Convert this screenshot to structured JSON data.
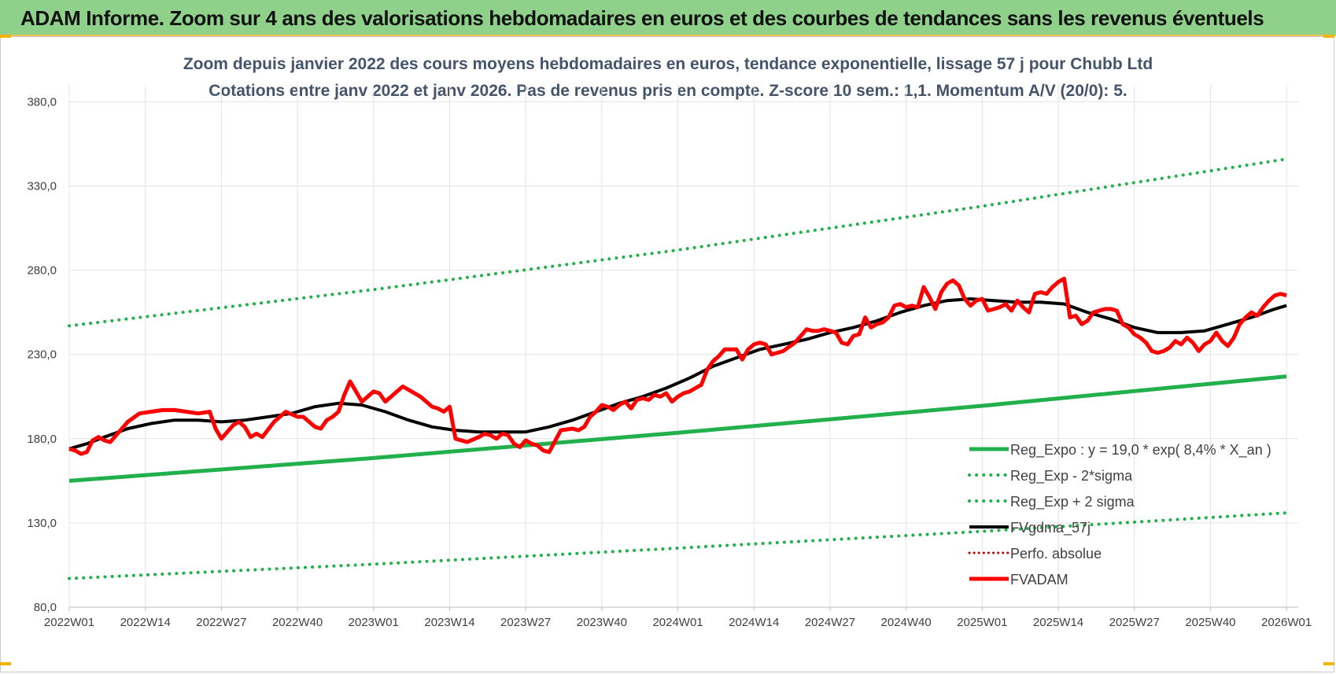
{
  "header": {
    "title": "ADAM Informe. Zoom sur 4 ans des valorisations hebdomadaires en euros et des courbes de tendances sans les revenus éventuels"
  },
  "colors": {
    "banner": "#8fd08a",
    "regression": "#21b04b",
    "band": "#21b04b",
    "smoothed": "#000000",
    "price": "#ff0000",
    "perfo": "#c00000",
    "title_text": "#44546a"
  },
  "chart_data": {
    "type": "line",
    "title": "Zoom depuis janvier 2022 des cours moyens hebdomadaires en euros, tendance exponentielle, lissage 57 j pour Chubb Ltd",
    "subtitle": "Cotations entre janv 2022 et janv 2026. Pas de revenus pris en compte. Z-score 10 sem.: 1,1. Momentum A/V (20/0): 5.",
    "xlabel": "",
    "ylabel": "",
    "ylim": [
      80,
      390
    ],
    "y_ticks": [
      "80,0",
      "130,0",
      "180,0",
      "230,0",
      "280,0",
      "330,0",
      "380,0"
    ],
    "y_tick_values": [
      80,
      130,
      180,
      230,
      280,
      330,
      380
    ],
    "x_range_weeks": [
      0,
      210
    ],
    "x_ticks": [
      "2022W01",
      "2022W14",
      "2022W27",
      "2022W40",
      "2023W01",
      "2023W14",
      "2023W27",
      "2023W40",
      "2024W01",
      "2024W14",
      "2024W27",
      "2024W40",
      "2025W01",
      "2025W14",
      "2025W27",
      "2025W40",
      "2026W01"
    ],
    "x_tick_weeks": [
      0,
      13,
      26,
      39,
      52,
      65,
      78,
      91,
      104,
      117,
      130,
      143,
      156,
      169,
      182,
      195,
      208
    ],
    "grid": true,
    "legend_position": "bottom-right",
    "series": [
      {
        "name": "Reg_Expo : y = 19,0 * exp( 8,4% *  X_an )",
        "style": "solid-thick",
        "x": [
          0,
          52,
          104,
          156,
          208
        ],
        "values": [
          155.0,
          168.5,
          183.5,
          199.5,
          217.0
        ]
      },
      {
        "name": "Reg_Exp - 2*sigma",
        "style": "dotted",
        "x": [
          0,
          52,
          104,
          156,
          208
        ],
        "values": [
          97.0,
          105.5,
          115.0,
          125.0,
          136.0
        ]
      },
      {
        "name": "Reg_Exp + 2 sigma",
        "style": "dotted",
        "x": [
          0,
          52,
          104,
          156,
          208
        ],
        "values": [
          247.0,
          268.5,
          292.0,
          318.0,
          346.0
        ]
      },
      {
        "name": "FVgdma_57j",
        "style": "solid",
        "x": [
          0,
          3,
          6,
          10,
          14,
          18,
          22,
          26,
          30,
          34,
          38,
          42,
          46,
          50,
          54,
          58,
          62,
          66,
          70,
          74,
          78,
          82,
          86,
          90,
          94,
          98,
          102,
          106,
          110,
          114,
          118,
          122,
          126,
          130,
          134,
          138,
          142,
          146,
          150,
          154,
          158,
          162,
          166,
          170,
          174,
          178,
          182,
          186,
          190,
          194,
          198,
          202,
          206,
          208
        ],
        "values": [
          174,
          177,
          181,
          186,
          189,
          191,
          191,
          190,
          191,
          193,
          195,
          199,
          201,
          200,
          196,
          191,
          187,
          185,
          184,
          184,
          184,
          187,
          191,
          196,
          201,
          205,
          210,
          216,
          223,
          228,
          233,
          236,
          239,
          243,
          246,
          250,
          255,
          259,
          262,
          263,
          262,
          261,
          261,
          260,
          255,
          251,
          246,
          243,
          243,
          244,
          248,
          252,
          257,
          259
        ]
      },
      {
        "name": "Perfo. absolue",
        "style": "dotted",
        "x": [],
        "values": []
      },
      {
        "name": "FVADAM",
        "style": "solid-thick",
        "x": [
          0,
          1,
          2,
          3,
          4,
          5,
          6,
          7,
          8,
          10,
          12,
          14,
          16,
          18,
          20,
          22,
          24,
          25,
          26,
          27,
          28,
          29,
          30,
          31,
          32,
          33,
          35,
          37,
          39,
          40,
          42,
          43,
          44,
          45,
          46,
          47,
          48,
          49,
          50,
          51,
          52,
          53,
          54,
          55,
          56,
          57,
          58,
          60,
          62,
          63,
          64,
          65,
          66,
          68,
          70,
          71,
          72,
          73,
          74,
          75,
          76,
          77,
          78,
          79,
          80,
          81,
          82,
          84,
          86,
          87,
          88,
          89,
          90,
          91,
          92,
          93,
          94,
          95,
          96,
          97,
          98,
          99,
          100,
          101,
          102,
          103,
          104,
          105,
          106,
          107,
          108,
          109,
          110,
          111,
          112,
          114,
          115,
          116,
          117,
          118,
          119,
          120,
          121,
          122,
          124,
          125,
          126,
          127,
          128,
          129,
          130,
          131,
          132,
          133,
          134,
          135,
          136,
          137,
          138,
          139,
          140,
          141,
          142,
          143,
          144,
          145,
          146,
          147,
          148,
          149,
          150,
          151,
          152,
          153,
          154,
          155,
          156,
          157,
          158,
          159,
          160,
          161,
          162,
          163,
          164,
          165,
          166,
          167,
          168,
          169,
          170,
          171,
          172,
          173,
          174,
          175,
          176,
          177,
          178,
          179,
          180,
          181,
          182,
          183,
          184,
          185,
          186,
          187,
          188,
          189,
          190,
          191,
          192,
          193,
          194,
          195,
          196,
          197,
          198,
          199,
          200,
          201,
          202,
          203,
          204,
          205,
          206,
          207,
          208
        ],
        "values": [
          174,
          173,
          171,
          172,
          179,
          181,
          179,
          178,
          182,
          190,
          195,
          196,
          197,
          197,
          196,
          195,
          196,
          186,
          180,
          184,
          188,
          190,
          187,
          181,
          183,
          181,
          190,
          196,
          193,
          193,
          187,
          186,
          191,
          193,
          196,
          206,
          214,
          208,
          202,
          205,
          208,
          207,
          202,
          205,
          208,
          211,
          209,
          205,
          199,
          198,
          196,
          199,
          180,
          178,
          181,
          183,
          182,
          180,
          183,
          182,
          177,
          175,
          179,
          177,
          176,
          173,
          172,
          185,
          186,
          185,
          187,
          193,
          196,
          200,
          199,
          197,
          200,
          202,
          198,
          203,
          204,
          203,
          206,
          205,
          207,
          202,
          205,
          207,
          208,
          210,
          212,
          221,
          226,
          229,
          233,
          233,
          227,
          233,
          236,
          237,
          236,
          230,
          231,
          232,
          237,
          241,
          245,
          244,
          244,
          245,
          244,
          243,
          237,
          236,
          241,
          242,
          252,
          246,
          248,
          249,
          252,
          259,
          260,
          258,
          259,
          258,
          270,
          264,
          257,
          267,
          272,
          274,
          271,
          263,
          259,
          262,
          263,
          256,
          257,
          258,
          260,
          256,
          262,
          258,
          255,
          266,
          267,
          266,
          270,
          273,
          275,
          252,
          253,
          248,
          250,
          255,
          256,
          257,
          257,
          256,
          248,
          246,
          242,
          240,
          237,
          232,
          231,
          232,
          234,
          238,
          236,
          240,
          237,
          232,
          236,
          238,
          243,
          238,
          235,
          240,
          248,
          252,
          255,
          253,
          258,
          262,
          265,
          266,
          265
        ]
      }
    ]
  }
}
